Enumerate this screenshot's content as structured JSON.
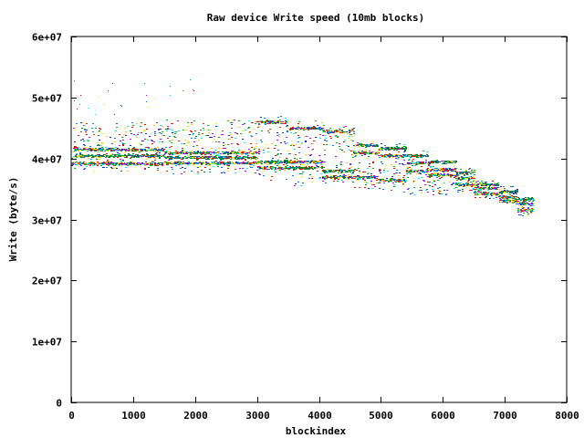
{
  "chart_data": {
    "type": "scatter",
    "title": "Raw device Write speed (10mb blocks)",
    "xlabel": "blockindex",
    "ylabel": "Write (byte/s)",
    "xlim": [
      0,
      8000
    ],
    "ylim": [
      0,
      60000000
    ],
    "xticks": [
      "0",
      "1000",
      "2000",
      "3000",
      "4000",
      "5000",
      "6000",
      "7000",
      "8000"
    ],
    "yticks": [
      "0",
      "1e+07",
      "2e+07",
      "3e+07",
      "4e+07",
      "5e+07",
      "6e+07"
    ],
    "grid": false,
    "legend": "none",
    "colors": [
      "#ff0000",
      "#00c000",
      "#0080ff",
      "#c000ff",
      "#00eeee",
      "#c04000",
      "#eeee00",
      "#2020c0",
      "#ffc020",
      "#008040"
    ],
    "dominant_color": "#008040",
    "description_bands": [
      {
        "x": [
          0,
          1500
        ],
        "levels": [
          40500000,
          39200000,
          41500000
        ],
        "upper": [
          46000000,
          38000000
        ]
      },
      {
        "x": [
          1500,
          3000
        ],
        "levels": [
          40200000,
          39300000,
          41000000
        ],
        "upper": [
          46500000,
          37500000
        ]
      },
      {
        "x": [
          3000,
          3500
        ],
        "levels": [
          39500000,
          46000000,
          38500000
        ],
        "upper": [
          47000000,
          36000000
        ]
      },
      {
        "x": [
          3500,
          4050
        ],
        "levels": [
          38500000,
          45000000,
          39500000
        ],
        "upper": [
          46500000,
          35500000
        ]
      },
      {
        "x": [
          4050,
          4550
        ],
        "levels": [
          38000000,
          44500000,
          37000000
        ],
        "upper": [
          45500000,
          36000000
        ]
      },
      {
        "x": [
          4550,
          4950
        ],
        "levels": [
          42200000,
          37000000,
          41000000
        ],
        "upper": [
          43000000,
          35000000
        ]
      },
      {
        "x": [
          4950,
          5400
        ],
        "levels": [
          41700000,
          40500000,
          36500000
        ],
        "upper": [
          42500000,
          34000000
        ]
      },
      {
        "x": [
          5400,
          5750
        ],
        "levels": [
          40500000,
          39300000,
          38000000
        ],
        "upper": [
          41500000,
          34000000
        ]
      },
      {
        "x": [
          5750,
          6200
        ],
        "levels": [
          39500000,
          38200000,
          37300000
        ],
        "upper": [
          40000000,
          34000000
        ]
      },
      {
        "x": [
          6200,
          6500
        ],
        "levels": [
          37700000,
          35800000,
          36800000
        ],
        "upper": [
          38500000,
          34500000
        ]
      },
      {
        "x": [
          6500,
          6900
        ],
        "levels": [
          35800000,
          35200000,
          34300000
        ],
        "upper": [
          36500000,
          33500000
        ]
      },
      {
        "x": [
          6900,
          7200
        ],
        "levels": [
          34600000,
          33700000,
          33100000
        ],
        "upper": [
          35500000,
          32500000
        ]
      },
      {
        "x": [
          7200,
          7450
        ],
        "levels": [
          33400000,
          32600000,
          31600000
        ],
        "upper": [
          33500000,
          30500000
        ]
      }
    ]
  }
}
